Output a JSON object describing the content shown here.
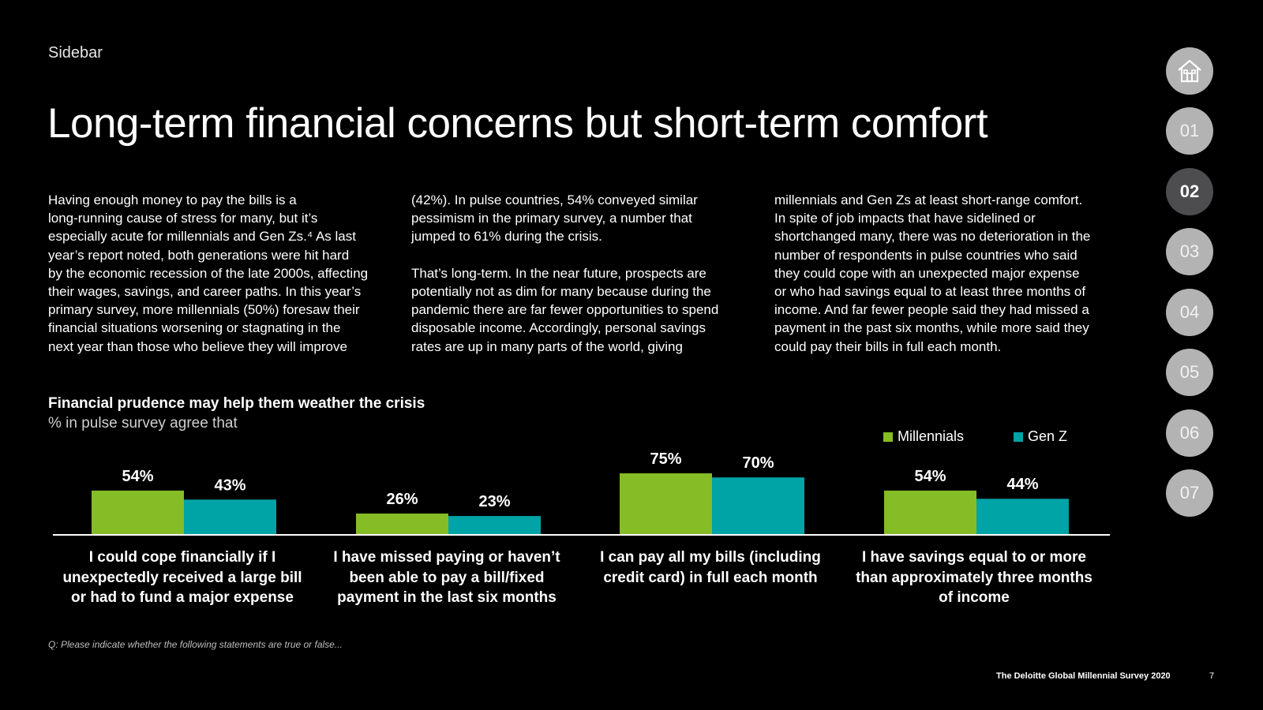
{
  "header": {
    "kicker": "Sidebar",
    "title": "Long-term financial concerns but short-term comfort"
  },
  "body_columns": [
    "Having enough money to pay the bills is a\nlong-running cause of stress for many, but it’s\nespecially acute for millennials and Gen Zs.⁴  As last\nyear’s report noted, both generations were hit hard\nby the economic recession of the late 2000s, affecting\ntheir wages, savings, and career paths. In this year’s\nprimary survey, more millennials (50%) foresaw their\nfinancial situations worsening or stagnating in the\nnext year than those who believe they will improve",
    "(42%). In pulse countries, 54% conveyed similar\npessimism in the primary survey, a number that\njumped to 61% during the crisis.\n\nThat’s long-term. In the near future, prospects are\npotentially not as dim for many because during the\npandemic there are far fewer opportunities to spend\ndisposable income. Accordingly, personal savings\nrates are up in many parts of the world, giving",
    "millennials and Gen Zs at least short-range comfort.\nIn spite of job impacts that have sidelined or\nshortchanged many, there was no deterioration in the\nnumber of respondents in pulse countries who said\nthey could cope with an unexpected major expense\nor who had savings equal to at least three months of\nincome. And far fewer people said they had missed a\npayment in the past six months, while more said they\ncould pay their bills in full each month."
  ],
  "chart_data": {
    "type": "bar",
    "title": "Financial prudence may help them weather the crisis",
    "subtitle": "% in pulse survey agree that",
    "categories": [
      "I could cope financially if I\nunexpectedly received a large bill\nor had to fund a major expense",
      "I have missed paying or haven’t\nbeen able to pay a bill/fixed\npayment in the last six months",
      "I can pay all my bills (including\ncredit card) in full each month",
      "I have savings equal to or more\nthan approximately three months\nof income"
    ],
    "series": [
      {
        "name": "Millennials",
        "color": "#86bc25",
        "values": [
          54,
          26,
          75,
          54
        ]
      },
      {
        "name": "Gen Z",
        "color": "#00a3a6",
        "values": [
          43,
          23,
          70,
          44
        ]
      }
    ],
    "value_suffix": "%",
    "ylim": [
      0,
      100
    ],
    "grid": false,
    "legend_position": "top-right"
  },
  "footnote": "Q: Please indicate whether the following statements are true or false...",
  "footer": {
    "publication": "The Deloitte Global Millennial Survey 2020",
    "page_number": "7"
  },
  "navigation": {
    "home_icon": "home-icon",
    "items": [
      "01",
      "02",
      "03",
      "04",
      "05",
      "06",
      "07"
    ],
    "active": "02"
  }
}
